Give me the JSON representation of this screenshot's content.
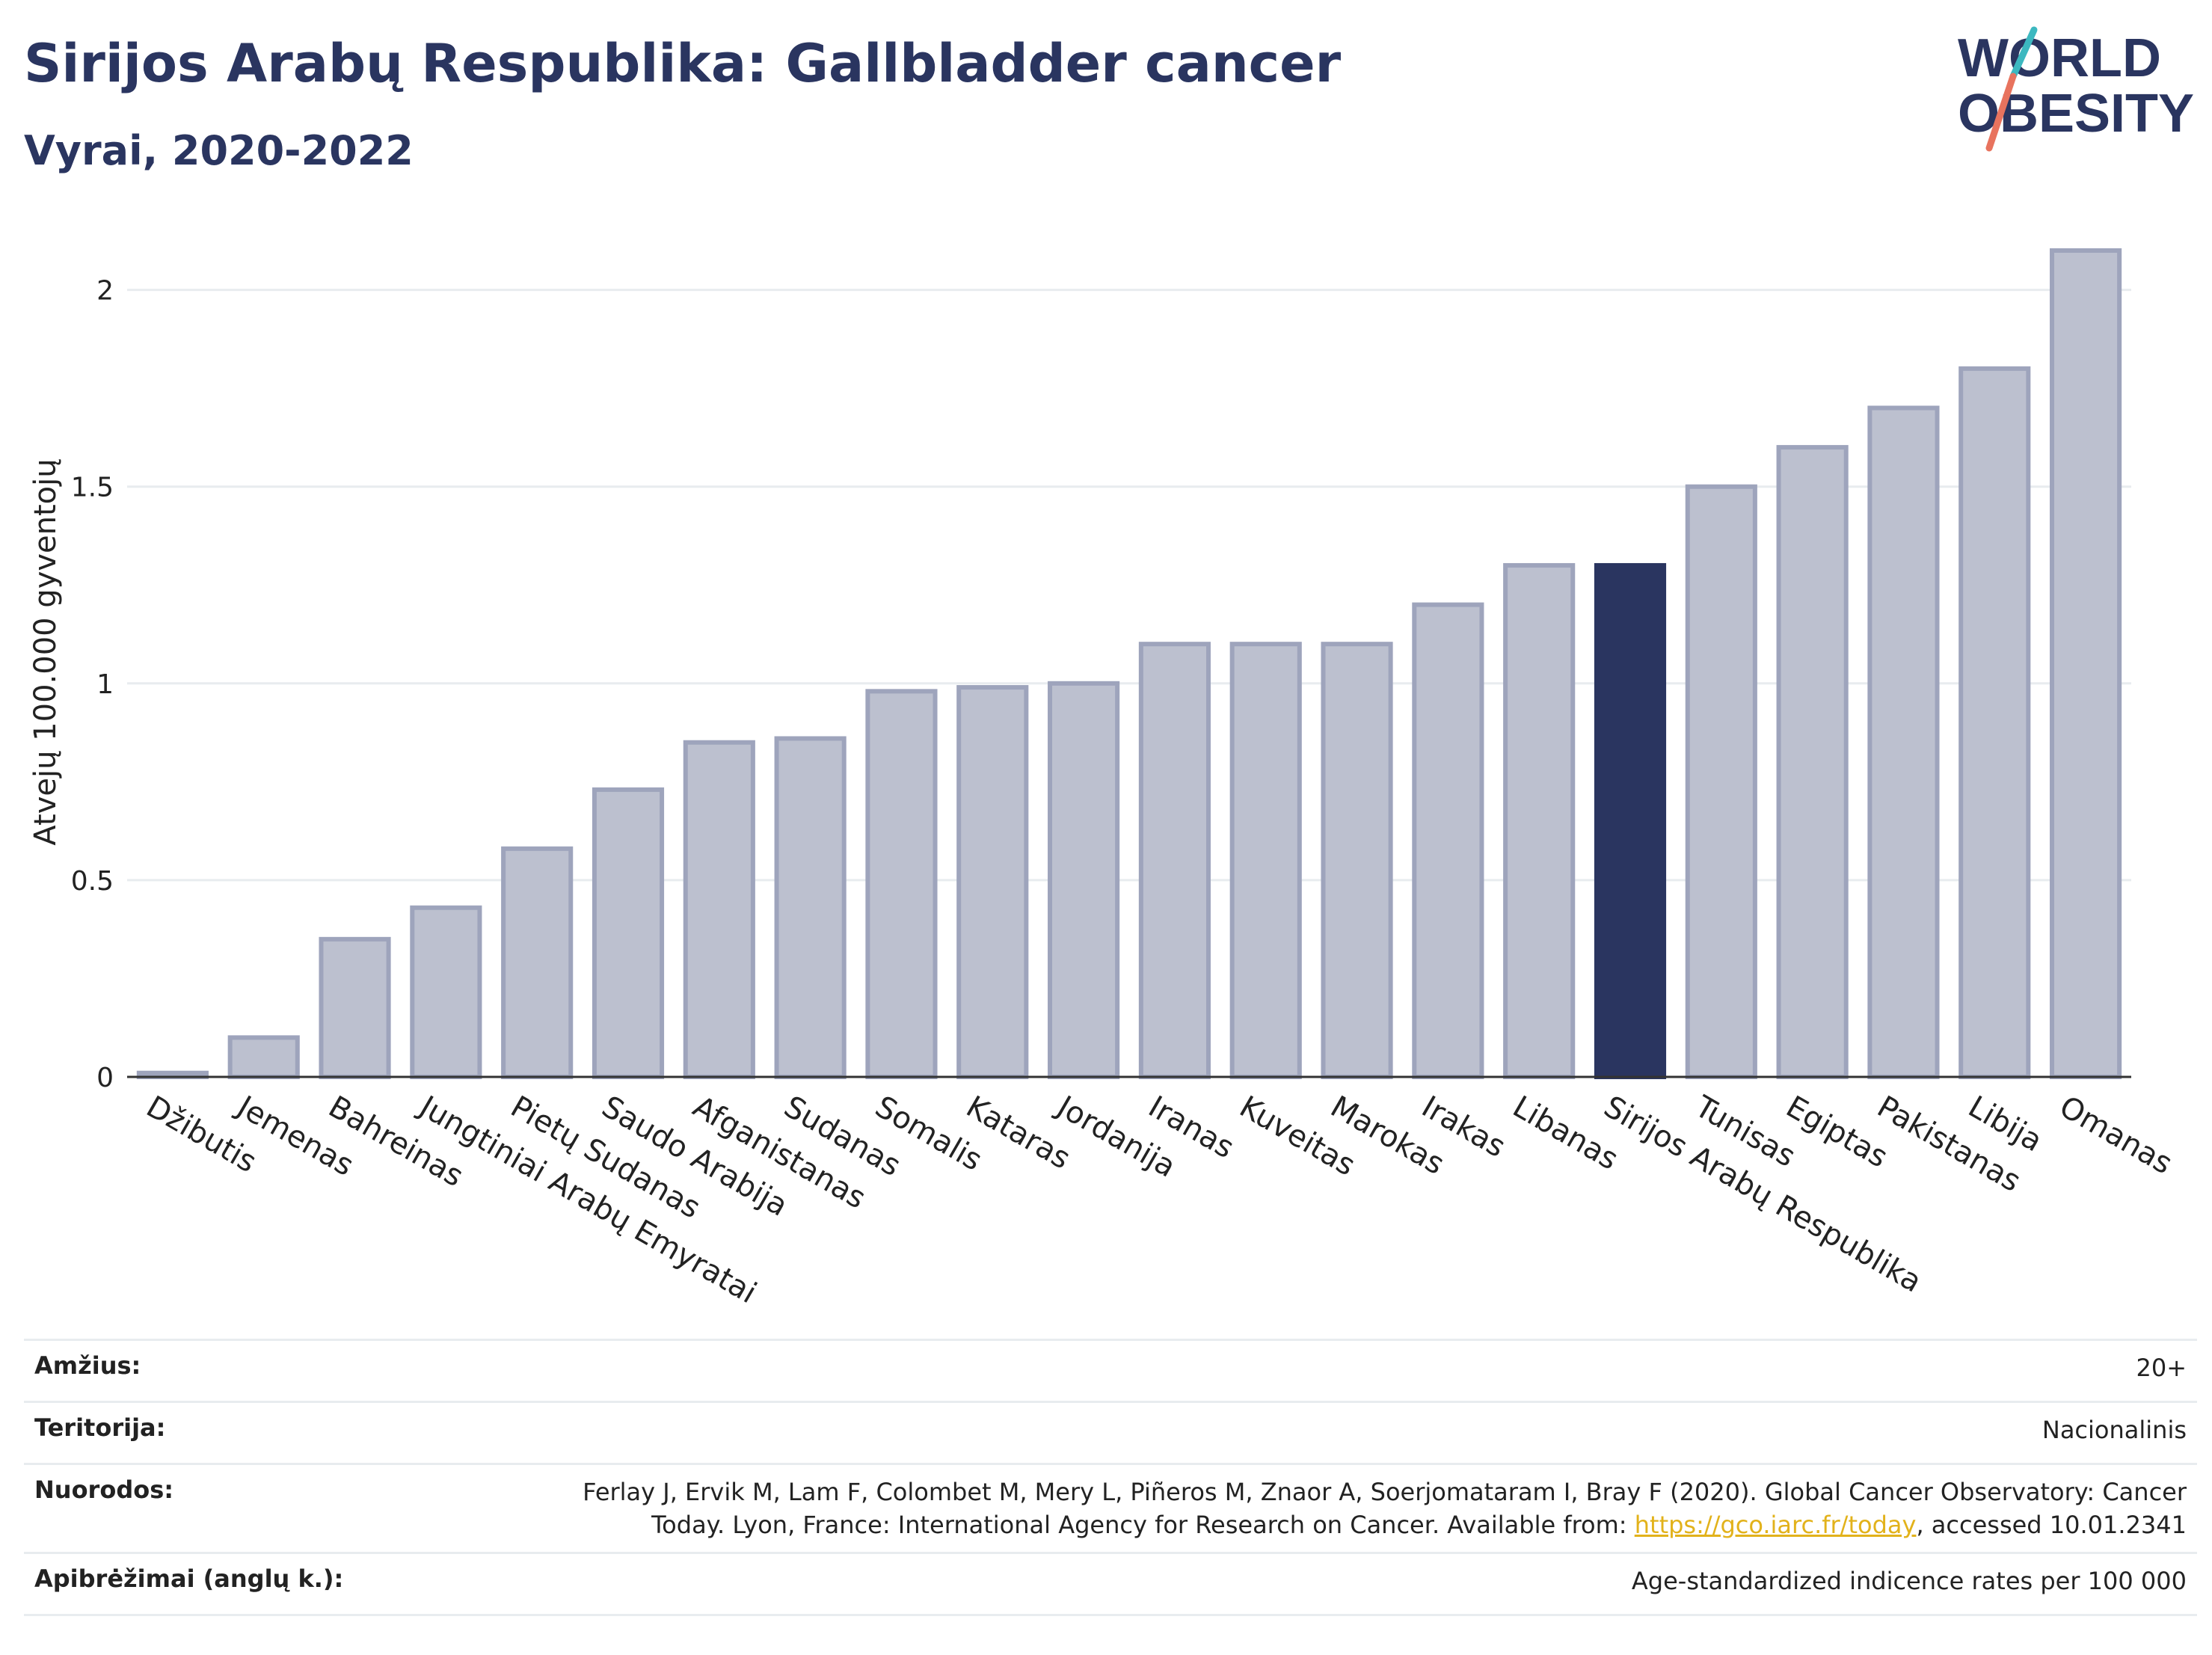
{
  "header": {
    "title": "Sirijos Arabų Respublika: Gallbladder cancer",
    "subtitle": "Vyrai, 2020-2022"
  },
  "logo": {
    "line1": "WORLD",
    "line2": "OBESITY",
    "colors": {
      "text": "#2a3560",
      "slash_teal": "#3cb8c0",
      "slash_red": "#e8735e"
    }
  },
  "colors": {
    "bar_default_fill": "#bcc0cf",
    "bar_default_stroke": "#9ea4bc",
    "bar_highlight": "#2a3560",
    "gridline": "#e8ecef",
    "axis_line": "#333333"
  },
  "chart_data": {
    "type": "bar",
    "categories": [
      "Džibutis",
      "Jemenas",
      "Bahreinas",
      "Jungtiniai Arabų Emyratai",
      "Pietų Sudanas",
      "Saudo Arabija",
      "Afganistanas",
      "Sudanas",
      "Somalis",
      "Kataras",
      "Jordanija",
      "Iranas",
      "Kuveitas",
      "Marokas",
      "Irakas",
      "Libanas",
      "Sirijos Arabų Respublika",
      "Tunisas",
      "Egiptas",
      "Pakistanas",
      "Libija",
      "Omanas"
    ],
    "values": [
      0.01,
      0.1,
      0.35,
      0.43,
      0.58,
      0.73,
      0.85,
      0.86,
      0.98,
      0.99,
      1.0,
      1.1,
      1.1,
      1.1,
      1.2,
      1.3,
      1.3,
      1.5,
      1.6,
      1.7,
      1.8,
      2.1
    ],
    "highlight": "Sirijos Arabų Respublika",
    "ylabel": "Atvejų 100.000 gyventojų",
    "xlabel": "",
    "ylim": [
      0,
      2.1
    ],
    "yticks": [
      0,
      0.5,
      1,
      1.5,
      2
    ],
    "ytick_labels": [
      "0",
      "0.5",
      "1",
      "1.5",
      "2"
    ],
    "grid": true
  },
  "info": {
    "age_label": "Amžius:",
    "age_value": "20+",
    "territory_label": "Teritorija:",
    "territory_value": "Nacionalinis",
    "refs_label": "Nuorodos:",
    "refs_text_1": "Ferlay J, Ervik M, Lam F, Colombet M, Mery L, Piñeros M, Znaor A, Soerjomataram I, Bray F (2020). Global Cancer Observatory: Cancer",
    "refs_text_2": "Today. Lyon, France: International Agency for Research on Cancer. Available from: ",
    "refs_link": "https://gco.iarc.fr/today",
    "refs_text_3": ", accessed 10.01.2341",
    "defs_label": "Apibrėžimai (anglų k.):",
    "defs_value": "Age-standardized indicence rates per 100 000"
  }
}
